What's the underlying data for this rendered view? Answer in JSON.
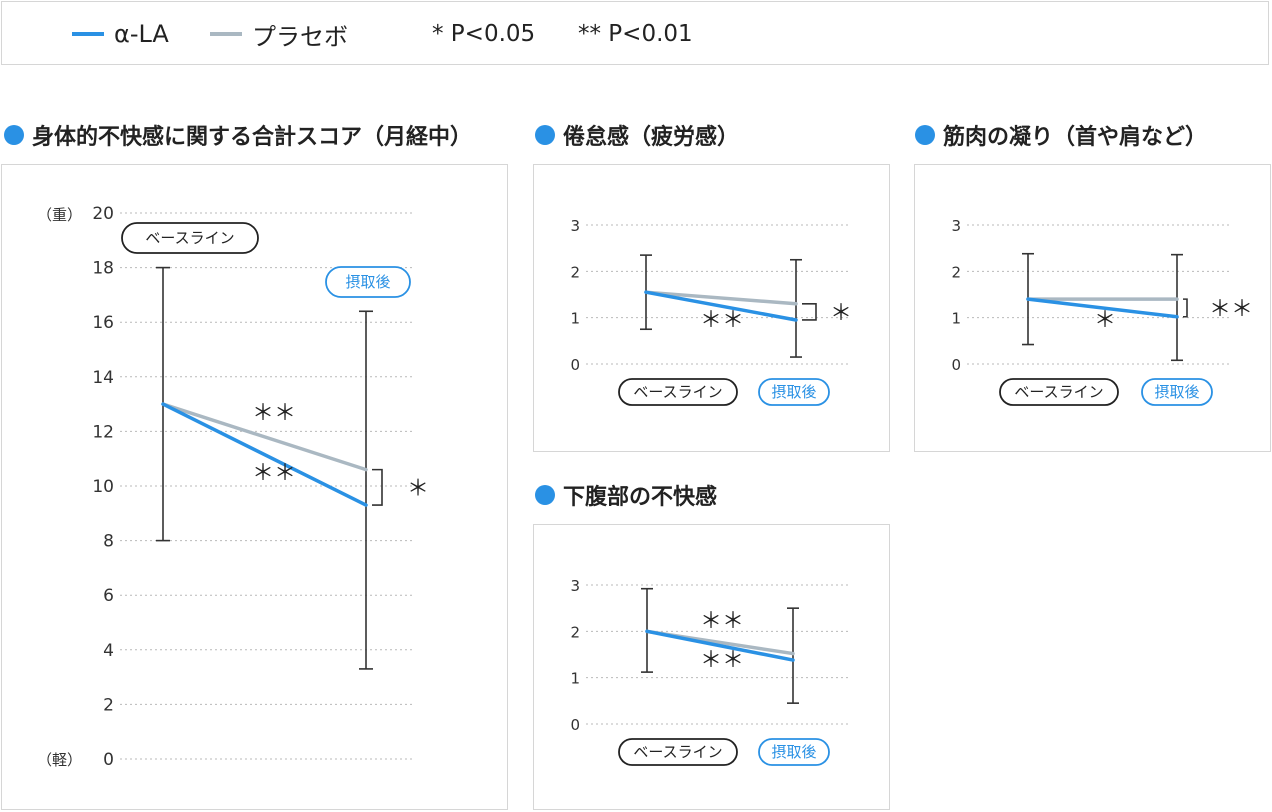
{
  "legend": {
    "items": [
      {
        "label": "α-LA",
        "color": "#2a91e4"
      },
      {
        "label": "プラセボ",
        "color": "#aab8c2"
      }
    ],
    "notes": [
      "* P<0.05",
      "** P<0.01"
    ]
  },
  "phase_labels": {
    "baseline": "ベースライン",
    "after": "摂取後"
  },
  "chart_data": [
    {
      "type": "line",
      "title": "身体的不快感に関する合計スコア（月経中）",
      "x": [
        "ベースライン",
        "摂取後"
      ],
      "ylim": [
        0,
        20
      ],
      "yticks": [
        0,
        2,
        4,
        6,
        8,
        10,
        12,
        14,
        16,
        18,
        20
      ],
      "ytick_labels": [
        "0",
        "2",
        "4",
        "6",
        "8",
        "10",
        "12",
        "14",
        "16",
        "18",
        "20"
      ],
      "y_top_label": "（重）",
      "y_bottom_label": "（軽）",
      "grid": true,
      "series": [
        {
          "name": "α-LA",
          "values": [
            13.0,
            9.3
          ],
          "color": "#2a91e4"
        },
        {
          "name": "プラセボ",
          "values": [
            13.0,
            10.6
          ],
          "color": "#aab8c2"
        }
      ],
      "error_bars": [
        {
          "at": "ベースライン",
          "low": 8.0,
          "high": 18.0
        },
        {
          "at": "摂取後",
          "low": 3.3,
          "high": 16.4
        }
      ],
      "annotations": [
        {
          "text": "＊＊",
          "series": "プラセボ"
        },
        {
          "text": "＊＊",
          "series": "α-LA"
        },
        {
          "text": "＊",
          "between": "groups"
        }
      ]
    },
    {
      "type": "line",
      "title": "倦怠感（疲労感）",
      "x": [
        "ベースライン",
        "摂取後"
      ],
      "ylim": [
        0,
        3
      ],
      "yticks": [
        0,
        1,
        2,
        3
      ],
      "ytick_labels": [
        "0",
        "1",
        "2",
        "3"
      ],
      "grid": true,
      "series": [
        {
          "name": "α-LA",
          "values": [
            1.55,
            0.95
          ],
          "color": "#2a91e4"
        },
        {
          "name": "プラセボ",
          "values": [
            1.55,
            1.3
          ],
          "color": "#aab8c2"
        }
      ],
      "error_bars": [
        {
          "at": "ベースライン",
          "low": 0.75,
          "high": 2.35
        },
        {
          "at": "摂取後",
          "low": 0.15,
          "high": 2.25
        }
      ],
      "annotations": [
        {
          "text": "＊＊",
          "series": "α-LA"
        },
        {
          "text": "＊",
          "between": "groups"
        }
      ]
    },
    {
      "type": "line",
      "title": "筋肉の凝り（首や肩など）",
      "x": [
        "ベースライン",
        "摂取後"
      ],
      "ylim": [
        0,
        3
      ],
      "yticks": [
        0,
        1,
        2,
        3
      ],
      "ytick_labels": [
        "0",
        "1",
        "2",
        "3"
      ],
      "grid": true,
      "series": [
        {
          "name": "α-LA",
          "values": [
            1.4,
            1.02
          ],
          "color": "#2a91e4"
        },
        {
          "name": "プラセボ",
          "values": [
            1.4,
            1.4
          ],
          "color": "#aab8c2"
        }
      ],
      "error_bars": [
        {
          "at": "ベースライン",
          "low": 0.42,
          "high": 2.38
        },
        {
          "at": "摂取後",
          "low": 0.08,
          "high": 2.36
        }
      ],
      "annotations": [
        {
          "text": "＊",
          "series": "α-LA"
        },
        {
          "text": "＊＊",
          "between": "groups"
        }
      ]
    },
    {
      "type": "line",
      "title": "下腹部の不快感",
      "x": [
        "ベースライン",
        "摂取後"
      ],
      "ylim": [
        0,
        3
      ],
      "yticks": [
        0,
        1,
        2,
        3
      ],
      "ytick_labels": [
        "0",
        "1",
        "2",
        "3"
      ],
      "grid": true,
      "series": [
        {
          "name": "α-LA",
          "values": [
            2.0,
            1.38
          ],
          "color": "#2a91e4"
        },
        {
          "name": "プラセボ",
          "values": [
            2.0,
            1.52
          ],
          "color": "#aab8c2"
        }
      ],
      "error_bars": [
        {
          "at": "ベースライン",
          "low": 1.12,
          "high": 2.92
        },
        {
          "at": "摂取後",
          "low": 0.45,
          "high": 2.5
        }
      ],
      "annotations": [
        {
          "text": "＊＊",
          "series": "プラセボ"
        },
        {
          "text": "＊＊",
          "series": "α-LA"
        }
      ]
    }
  ]
}
